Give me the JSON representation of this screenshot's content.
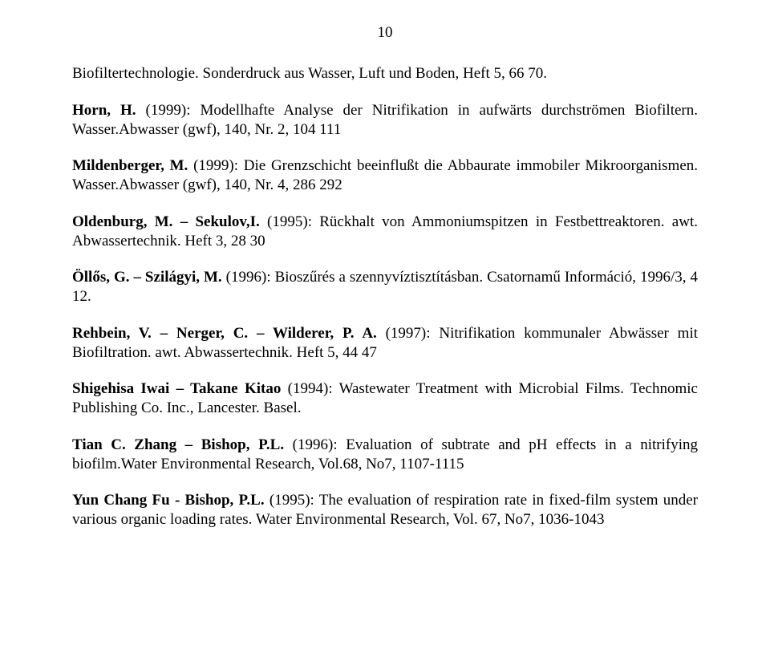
{
  "pageNumber": "10",
  "references": [
    {
      "segments": [
        {
          "text": "Biofiltertechnologie. Sonderdruck aus Wasser, Luft und Boden, Heft 5, 66 70.",
          "bold": false
        }
      ]
    },
    {
      "segments": [
        {
          "text": "Horn, H.",
          "bold": true
        },
        {
          "text": " (1999): Modellhafte Analyse der Nitrifikation in aufwärts durchströmen Biofiltern. Wasser.Abwasser (gwf), 140, Nr. 2, 104 111",
          "bold": false
        }
      ]
    },
    {
      "segments": [
        {
          "text": "Mildenberger, M.",
          "bold": true
        },
        {
          "text": " (1999): Die Grenzschicht beeinflußt die Abbaurate immobiler Mikroorganismen. Wasser.Abwasser (gwf), 140, Nr. 4, 286 292",
          "bold": false
        }
      ]
    },
    {
      "segments": [
        {
          "text": "Oldenburg, M. – Sekulov,I.",
          "bold": true
        },
        {
          "text": " (1995): Rückhalt von Ammoniumspitzen in Festbettreaktoren. awt. Abwassertechnik. Heft 3, 28 30",
          "bold": false
        }
      ]
    },
    {
      "segments": [
        {
          "text": "Öllős, G. – Szilágyi, M.",
          "bold": true
        },
        {
          "text": " (1996): Bioszűrés a szennyvíztisztításban. Csatornamű Információ, 1996/3, 4 12.",
          "bold": false
        }
      ]
    },
    {
      "segments": [
        {
          "text": "Rehbein, V. – Nerger, C. – Wilderer, P. A.",
          "bold": true
        },
        {
          "text": " (1997): Nitrifikation kommunaler Abwässer mit Biofiltration. awt. Abwassertechnik. Heft 5, 44 47",
          "bold": false
        }
      ]
    },
    {
      "segments": [
        {
          "text": "Shigehisa Iwai – Takane Kitao",
          "bold": true
        },
        {
          "text": " (1994): Wastewater Treatment with Microbial Films. Technomic Publishing Co. Inc., Lancester. Basel.",
          "bold": false
        }
      ]
    },
    {
      "segments": [
        {
          "text": "Tian C. Zhang – Bishop, P.L.",
          "bold": true
        },
        {
          "text": " (1996): Evaluation of subtrate and pH effects in a nitrifying biofilm.Water Environmental Research, Vol.68, No7, 1107-1115",
          "bold": false
        }
      ]
    },
    {
      "segments": [
        {
          "text": "Yun Chang Fu - Bishop, P.L.",
          "bold": true
        },
        {
          "text": " (1995): The evaluation of respiration rate in fixed-film system under various organic loading rates. Water Environmental Research, Vol. 67, No7, 1036-1043",
          "bold": false
        }
      ]
    }
  ]
}
